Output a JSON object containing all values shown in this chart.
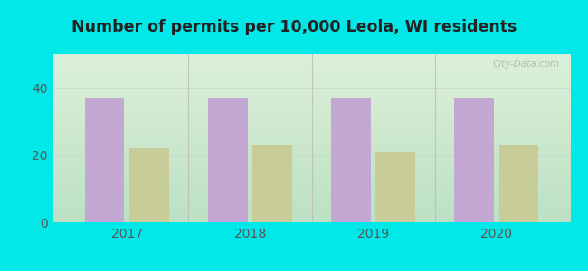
{
  "title": "Number of permits per 10,000 Leola, WI residents",
  "years": [
    2017,
    2018,
    2019,
    2020
  ],
  "leola_values": [
    37.0,
    37.0,
    37.0,
    37.0
  ],
  "wi_values": [
    22.0,
    23.0,
    21.0,
    23.0
  ],
  "leola_color": "#c4a8d4",
  "wi_color": "#c8cc99",
  "bg_outer": "#00e8e8",
  "bg_plot_top": "#f5fafa",
  "bg_plot_bottom": "#dff0e0",
  "title_color": "#222222",
  "ylabel_ticks": [
    0,
    20,
    40
  ],
  "ylim": [
    0,
    50
  ],
  "bar_width": 0.32,
  "watermark": "City-Data.com",
  "divider_color": "#bbbbbb",
  "tick_color": "#555555"
}
